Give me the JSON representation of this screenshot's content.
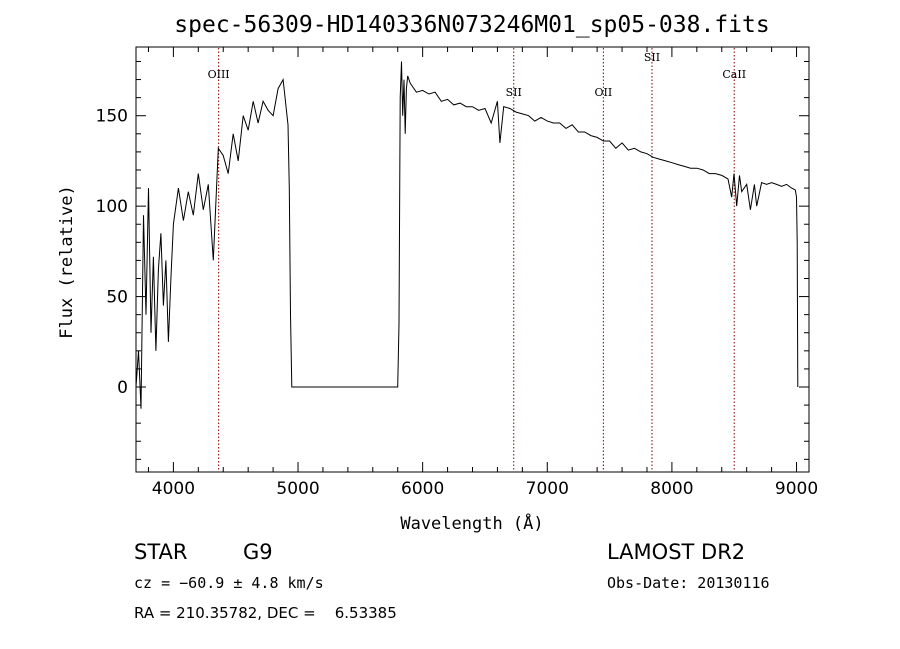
{
  "chart_data": {
    "type": "line",
    "title": "spec-56309-HD140336N073246M01_sp05-038.fits",
    "xlabel": "Wavelength (Å)",
    "ylabel": "Flux (relative)",
    "xlim": [
      3700,
      9100
    ],
    "ylim": [
      -47,
      188
    ],
    "xticks": [
      4000,
      5000,
      6000,
      7000,
      8000,
      9000
    ],
    "yticks": [
      0,
      50,
      100,
      150
    ],
    "grid": false,
    "lines": [
      {
        "name": "OIII",
        "x": 4363
      },
      {
        "name": "SII",
        "x": 6731
      },
      {
        "name": "OII",
        "x": 7450
      },
      {
        "name": "SII",
        "x": 7840
      },
      {
        "name": "CaII",
        "x": 8500
      }
    ],
    "series": [
      {
        "x": [
          3700,
          3720,
          3740,
          3760,
          3780,
          3800,
          3820,
          3840,
          3860,
          3880,
          3900,
          3920,
          3940,
          3960,
          3980,
          4000,
          4040,
          4080,
          4120,
          4160,
          4200,
          4240,
          4280,
          4320,
          4360,
          4400,
          4440,
          4480,
          4520,
          4560,
          4600,
          4640,
          4680,
          4720,
          4760,
          4800,
          4840,
          4880,
          4920,
          4930,
          4940,
          4950,
          5800,
          5810,
          5820,
          5830,
          5840,
          5850,
          5860,
          5870,
          5880,
          5900,
          5950,
          6000,
          6050,
          6100,
          6150,
          6200,
          6250,
          6300,
          6350,
          6400,
          6450,
          6500,
          6550,
          6600,
          6620,
          6650,
          6700,
          6750,
          6800,
          6850,
          6900,
          6950,
          7000,
          7050,
          7100,
          7150,
          7200,
          7250,
          7300,
          7350,
          7400,
          7450,
          7500,
          7550,
          7600,
          7650,
          7700,
          7750,
          7800,
          7850,
          7900,
          7950,
          8000,
          8050,
          8100,
          8150,
          8200,
          8250,
          8300,
          8350,
          8400,
          8450,
          8480,
          8498,
          8520,
          8542,
          8560,
          8600,
          8630,
          8662,
          8680,
          8720,
          8760,
          8800,
          8840,
          8880,
          8920,
          8960,
          8990,
          9000,
          9005,
          9010
        ],
        "values": [
          0,
          20,
          -12,
          95,
          40,
          110,
          30,
          72,
          20,
          65,
          85,
          45,
          70,
          25,
          60,
          90,
          110,
          92,
          108,
          95,
          118,
          98,
          112,
          70,
          132,
          128,
          118,
          140,
          125,
          150,
          142,
          158,
          146,
          158,
          153,
          150,
          165,
          170,
          145,
          110,
          40,
          0,
          0,
          35,
          160,
          180,
          150,
          170,
          140,
          165,
          172,
          168,
          163,
          164,
          162,
          163,
          158,
          159,
          156,
          157,
          155,
          155,
          153,
          154,
          146,
          158,
          135,
          155,
          154,
          152,
          151,
          150,
          147,
          149,
          147,
          146,
          146,
          143,
          145,
          141,
          141,
          139,
          138,
          136,
          136,
          132,
          135,
          131,
          132,
          130,
          129,
          127,
          126,
          125,
          124,
          123,
          122,
          121,
          121,
          120,
          118,
          118,
          117,
          115,
          105,
          118,
          100,
          117,
          108,
          112,
          98,
          112,
          100,
          113,
          112,
          113,
          112,
          111,
          112,
          110,
          109,
          105,
          80,
          0
        ]
      }
    ]
  },
  "info": {
    "object": "STAR",
    "subclass": "G9",
    "survey": "LAMOST DR2",
    "cz": "cz = −60.9 ± 4.8 km/s",
    "obsdate": "Obs-Date: 20130116",
    "radec": "RA = 210.35782, DEC =    6.53385"
  }
}
